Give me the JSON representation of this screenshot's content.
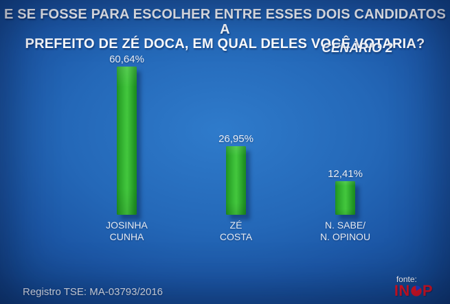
{
  "header": {
    "title_line1": "E SE FOSSE PARA ESCOLHER ENTRE ESSES DOIS CANDIDATOS A",
    "title_line2": "PREFEITO DE ZÉ DOCA, EM QUAL DELES VOCÊ VOTARIA?",
    "scenario_label": "CENÁRIO 2"
  },
  "chart_data": {
    "type": "bar",
    "title": "E SE FOSSE PARA ESCOLHER ENTRE ESSES DOIS CANDIDATOS A PREFEITO DE ZÉ DOCA, EM QUAL DELES VOCÊ VOTARIA?",
    "subtitle": "CENÁRIO 2",
    "categories": [
      "JOSINHA\nCUNHA",
      "ZÉ\nCOSTA",
      "N. SABE/\nN. OPINOU"
    ],
    "values": [
      60.64,
      26.95,
      12.41
    ],
    "value_labels": [
      "60,64%",
      "26,95%",
      "12,41%"
    ],
    "unit": "%",
    "ylim": [
      0,
      65
    ],
    "grid": false,
    "legend": false,
    "bar_color_center": "#3fc13a",
    "bar_color_edge": "#1e8f20",
    "background_color": "#2063b3"
  },
  "footer": {
    "registro": "Registro TSE: MA-03793/2016",
    "source": {
      "label": "fonte:",
      "name": "INOP"
    }
  },
  "colors": {
    "title_text": "#ffffff",
    "label_text": "#e7ecf3",
    "logo_red": "#e8121f",
    "logo_pie_blue": "#1c3ed2"
  }
}
